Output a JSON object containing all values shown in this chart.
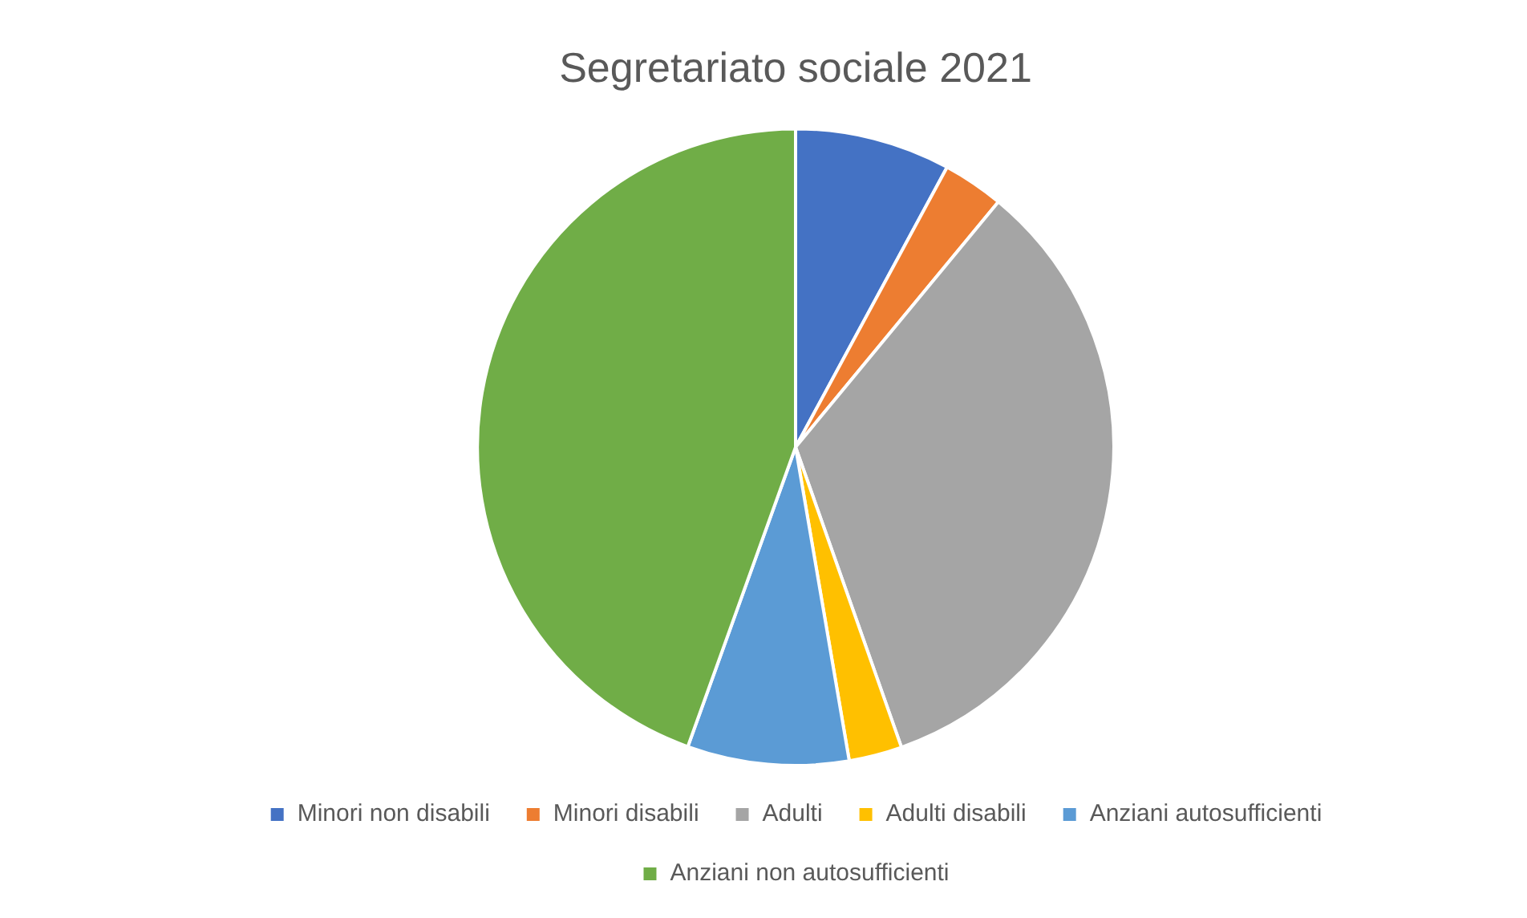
{
  "chart_data": {
    "type": "pie",
    "title": "Segretariato sociale 2021",
    "categories": [
      "Minori non disabili",
      "Minori disabili",
      "Adulti",
      "Adulti disabili",
      "Anziani autosufficienti",
      "Anziani non autosufficienti"
    ],
    "values": [
      7.9,
      3.1,
      33.6,
      2.7,
      8.2,
      44.5
    ],
    "colors": [
      "#4472c4",
      "#ed7d31",
      "#a5a5a5",
      "#ffc000",
      "#5b9bd5",
      "#70ad47"
    ],
    "legend": "bottom"
  }
}
